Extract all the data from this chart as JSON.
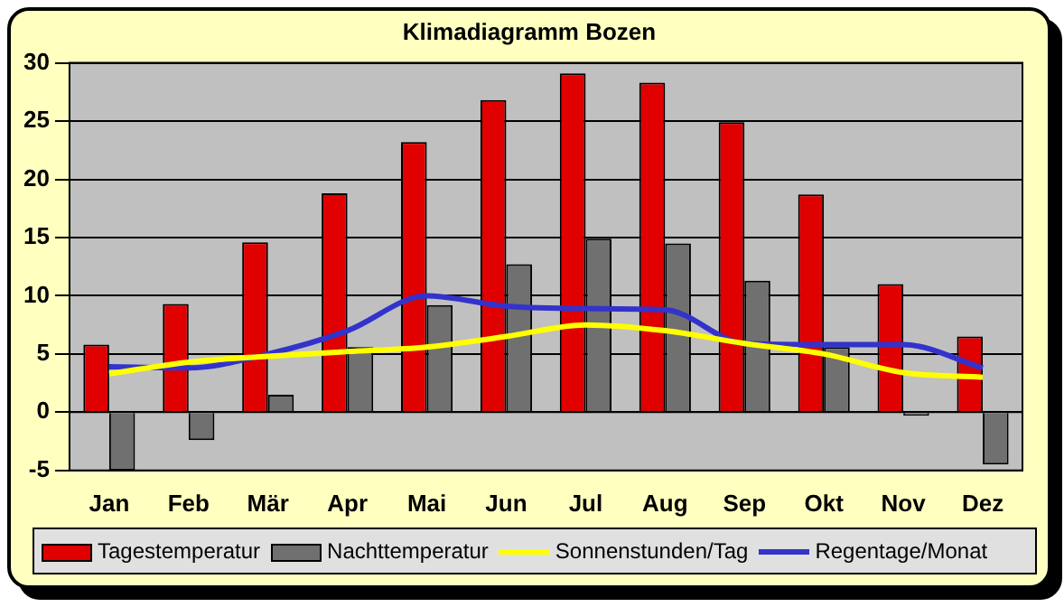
{
  "chart_data": {
    "type": "bar",
    "title": "Klimadiagramm Bozen",
    "categories": [
      "Jan",
      "Feb",
      "Mär",
      "Apr",
      "Mai",
      "Jun",
      "Jul",
      "Aug",
      "Sep",
      "Okt",
      "Nov",
      "Dez"
    ],
    "series": [
      {
        "name": "Tagestemperatur",
        "color": "#e00000",
        "values": [
          5.8,
          9.3,
          14.6,
          18.8,
          23.2,
          26.8,
          29.1,
          28.3,
          24.9,
          18.7,
          11.0,
          6.5
        ]
      },
      {
        "name": "Nachttemperatur",
        "color": "#707070",
        "values": [
          -5.0,
          -2.4,
          1.5,
          5.6,
          9.2,
          12.7,
          14.9,
          14.5,
          11.3,
          5.6,
          -0.3,
          -4.5
        ]
      },
      {
        "name": "Sonnenstunden/Tag",
        "type": "line",
        "color": "#ffff00",
        "values": [
          3.3,
          4.3,
          4.8,
          5.2,
          5.6,
          6.5,
          7.5,
          7.0,
          5.9,
          5.0,
          3.4,
          3.0
        ]
      },
      {
        "name": "Regentage/Monat",
        "type": "line",
        "color": "#3333cc",
        "values": [
          3.9,
          3.8,
          5.0,
          7.0,
          10.0,
          9.1,
          8.9,
          8.8,
          5.9,
          5.8,
          5.8,
          3.8
        ]
      }
    ],
    "ylim": [
      -5,
      30
    ],
    "yticks": [
      -5,
      0,
      5,
      10,
      15,
      20,
      25,
      30
    ],
    "grid": "y",
    "legend": "bottom",
    "marker": "none"
  }
}
